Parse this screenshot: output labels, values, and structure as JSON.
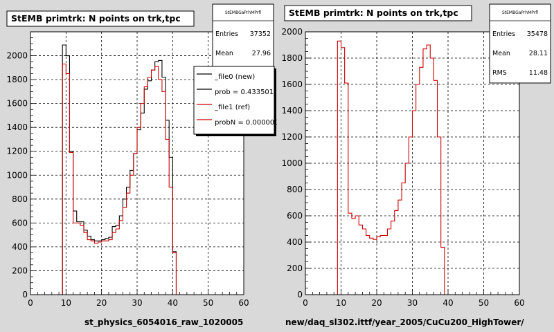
{
  "chart_data": [
    {
      "type": "bar",
      "title": "StEMB primtrk: N points on trk,tpc",
      "xlabel": "st_physics_6054016_raw_1020005",
      "xlim": [
        0,
        60
      ],
      "ylim": [
        0,
        2200
      ],
      "xticks": [
        "0",
        "10",
        "20",
        "30",
        "40",
        "50",
        "60"
      ],
      "yticks": [
        "0",
        "200",
        "400",
        "600",
        "800",
        "1000",
        "1200",
        "1400",
        "1600",
        "1800",
        "2000"
      ],
      "grid": true,
      "bin_width": 1,
      "bin_start": 9,
      "stats": {
        "name": "StEMBGaPrhMPrfl",
        "entries_label": "Entries",
        "entries": "37352",
        "mean_label": "Mean",
        "mean": "27.96"
      },
      "legend": [
        "_file0 (new)",
        "prob = 0.433501",
        "_file1 (ref)",
        "probN = 0.000000"
      ],
      "legend_position": "top-right",
      "series": [
        {
          "name": "_file0 (new)",
          "color": "#000000",
          "values": [
            2090,
            2000,
            1200,
            700,
            610,
            610,
            540,
            490,
            460,
            450,
            450,
            460,
            470,
            480,
            570,
            580,
            660,
            800,
            900,
            1040,
            1180,
            1380,
            1520,
            1720,
            1790,
            1880,
            1950,
            1960,
            1820,
            1460,
            1150,
            360
          ]
        },
        {
          "name": "_file1 (ref)",
          "color": "#cc0000",
          "values": [
            1930,
            1850,
            1190,
            600,
            600,
            580,
            520,
            460,
            450,
            430,
            440,
            450,
            450,
            460,
            520,
            550,
            620,
            730,
            850,
            1000,
            1180,
            1400,
            1600,
            1740,
            1820,
            1880,
            1910,
            1800,
            1700,
            1300,
            900,
            350
          ]
        }
      ]
    },
    {
      "type": "bar",
      "title": "StEMB primtrk: N points on trk,tpc",
      "xlabel": "new/daq_sl302.ittf/year_2005/CuCu200_HighTower/",
      "xlim": [
        0,
        60
      ],
      "ylim": [
        0,
        2000
      ],
      "xticks": [
        "0",
        "10",
        "20",
        "30",
        "40",
        "50",
        "60"
      ],
      "yticks": [
        "0",
        "200",
        "400",
        "600",
        "800",
        "1000",
        "1200",
        "1400",
        "1600",
        "1800",
        "2000"
      ],
      "grid": true,
      "bin_width": 1,
      "bin_start": 9,
      "stats": {
        "name": "StEMBGaPrhMPrfl",
        "entries_label": "Entries",
        "entries": "35478",
        "mean_label": "Mean",
        "mean": "28.11",
        "rms_label": "RMS",
        "rms": "11.48"
      },
      "series": [
        {
          "name": "",
          "color": "#cc0000",
          "values": [
            1930,
            1880,
            1610,
            620,
            580,
            600,
            530,
            500,
            450,
            430,
            420,
            440,
            450,
            450,
            500,
            560,
            640,
            720,
            850,
            1000,
            1200,
            1400,
            1600,
            1730,
            1870,
            1900,
            1800,
            1630,
            1200,
            360,
            0,
            0
          ]
        }
      ]
    }
  ]
}
